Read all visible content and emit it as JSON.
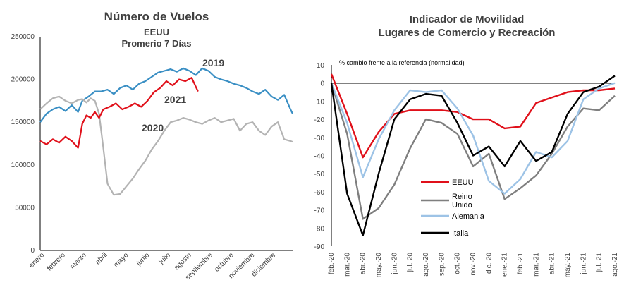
{
  "chart_data": [
    {
      "type": "line",
      "title": "Número de Vuelos",
      "subtitle": [
        "EEUU",
        "Promerio 7 Días"
      ],
      "categories": [
        "enero",
        "febrero",
        "marzo",
        "abril",
        "mayo",
        "junio",
        "julio",
        "agosto",
        "septiembre",
        "octubre",
        "noviembre",
        "diciembre"
      ],
      "ylim": [
        0,
        250000
      ],
      "yticks": [
        0,
        50000,
        100000,
        150000,
        200000,
        250000
      ],
      "grid": false,
      "series": [
        {
          "name": "2019",
          "color": "#3a8fc4",
          "x": [
            0,
            0.3,
            0.6,
            0.9,
            1.2,
            1.5,
            1.8,
            2.0,
            2.3,
            2.6,
            2.9,
            3.2,
            3.5,
            3.8,
            4.1,
            4.4,
            4.7,
            5.0,
            5.3,
            5.6,
            5.9,
            6.2,
            6.5,
            6.8,
            7.1,
            7.4,
            7.7,
            8.0,
            8.3,
            8.6,
            8.9,
            9.2,
            9.5,
            9.8,
            10.1,
            10.4,
            10.7,
            11.0,
            11.3,
            11.6,
            11.9,
            12.0
          ],
          "y": [
            150000,
            160000,
            165000,
            168000,
            163000,
            170000,
            162000,
            175000,
            180000,
            186000,
            186000,
            188000,
            183000,
            190000,
            193000,
            188000,
            195000,
            198000,
            203000,
            208000,
            210000,
            212000,
            209000,
            213000,
            210000,
            205000,
            213000,
            210000,
            203000,
            200000,
            198000,
            195000,
            193000,
            190000,
            186000,
            183000,
            188000,
            180000,
            176000,
            182000,
            165000,
            160000
          ]
        },
        {
          "name": "2020",
          "color": "#b3b3b3",
          "x": [
            0,
            0.3,
            0.6,
            0.9,
            1.2,
            1.5,
            1.8,
            2.0,
            2.2,
            2.4,
            2.6,
            2.8,
            3.0,
            3.2,
            3.5,
            3.8,
            4.1,
            4.4,
            4.7,
            5.0,
            5.3,
            5.6,
            5.9,
            6.2,
            6.5,
            6.8,
            7.1,
            7.4,
            7.7,
            8.0,
            8.3,
            8.6,
            8.9,
            9.2,
            9.5,
            9.8,
            10.1,
            10.4,
            10.7,
            11.0,
            11.3,
            11.6,
            11.9,
            12.0
          ],
          "y": [
            165000,
            172000,
            178000,
            180000,
            175000,
            172000,
            176000,
            177000,
            173000,
            178000,
            175000,
            160000,
            120000,
            78000,
            65000,
            66000,
            75000,
            84000,
            95000,
            105000,
            118000,
            128000,
            140000,
            150000,
            152000,
            155000,
            153000,
            150000,
            148000,
            152000,
            155000,
            150000,
            152000,
            154000,
            140000,
            148000,
            150000,
            140000,
            135000,
            145000,
            150000,
            130000,
            128000,
            127000
          ]
        },
        {
          "name": "2021",
          "color": "#e0101a",
          "x": [
            0,
            0.3,
            0.6,
            0.9,
            1.2,
            1.5,
            1.8,
            2.0,
            2.2,
            2.4,
            2.6,
            2.8,
            3.0,
            3.3,
            3.6,
            3.9,
            4.2,
            4.5,
            4.8,
            5.1,
            5.4,
            5.7,
            6.0,
            6.3,
            6.6,
            6.9,
            7.2,
            7.5
          ],
          "y": [
            128000,
            124000,
            130000,
            126000,
            133000,
            128000,
            120000,
            148000,
            158000,
            155000,
            162000,
            155000,
            165000,
            168000,
            172000,
            165000,
            168000,
            172000,
            168000,
            175000,
            185000,
            190000,
            198000,
            193000,
            200000,
            198000,
            202000,
            186000
          ]
        }
      ]
    },
    {
      "type": "line",
      "title": [
        "Indicador de Movilidad",
        "Lugares de Comercio y Recreación"
      ],
      "ylabel": "% cambio frente a la referencia (normalidad)",
      "categories": [
        "feb.-20",
        "mar.-20",
        "abr.-20",
        "may.-20",
        "jun.-20",
        "jul.-20",
        "ago.-20",
        "sep.-20",
        "oct.-20",
        "nov.-20",
        "dic.-20",
        "ene.-21",
        "feb.-21",
        "mar.-21",
        "abr.-21",
        "may.-21",
        "jun.-21",
        "jul.-21",
        "ago.-21"
      ],
      "ylim": [
        -90,
        10
      ],
      "yticks": [
        10,
        0,
        -10,
        -20,
        -30,
        -40,
        -50,
        -60,
        -70,
        -80,
        -90
      ],
      "grid": false,
      "legend_position": "bottom-left",
      "series": [
        {
          "name": "EEUU",
          "color": "#e0101a",
          "values": [
            5,
            -17,
            -41,
            -27,
            -17,
            -15,
            -15,
            -15,
            -16,
            -20,
            -20,
            -25,
            -24,
            -11,
            -8,
            -5,
            -4,
            -4,
            -3
          ]
        },
        {
          "name": "Reino Unido",
          "color": "#7f7f7f",
          "values": [
            0,
            -28,
            -75,
            -69,
            -56,
            -36,
            -20,
            -22,
            -28,
            -46,
            -39,
            -64,
            -58,
            -51,
            -39,
            -24,
            -14,
            -15,
            -7
          ]
        },
        {
          "name": "Alemania",
          "color": "#9dc3e6",
          "values": [
            0,
            -22,
            -52,
            -31,
            -15,
            -4,
            -5,
            -4,
            -14,
            -29,
            -54,
            -61,
            -53,
            -38,
            -41,
            -32,
            -9,
            -3,
            0
          ]
        },
        {
          "name": "Italia",
          "color": "#000000",
          "values": [
            0,
            -61,
            -84,
            -50,
            -20,
            -9,
            -6,
            -7,
            -22,
            -40,
            -35,
            -46,
            -32,
            -43,
            -38,
            -17,
            -5,
            -2,
            4
          ]
        }
      ]
    }
  ]
}
